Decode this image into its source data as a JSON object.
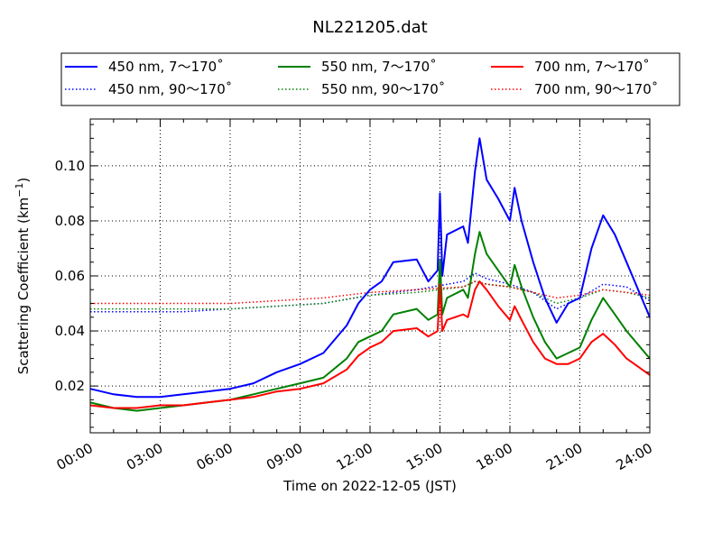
{
  "chart_data": {
    "type": "line",
    "title": "NL221205.dat",
    "xlabel": "Time on 2022-12-05 (JST)",
    "ylabel": "Scattering Coefficient (km",
    "ylabel_sup": "−1",
    "ylabel_end": ")",
    "xlim": [
      0,
      24
    ],
    "ylim": [
      0.003,
      0.117
    ],
    "x_ticks": [
      0,
      3,
      6,
      9,
      12,
      15,
      18,
      21,
      24
    ],
    "x_tick_labels": [
      "00:00",
      "03:00",
      "06:00",
      "09:00",
      "12:00",
      "15:00",
      "18:00",
      "21:00",
      "24:00"
    ],
    "y_ticks": [
      0.02,
      0.04,
      0.06,
      0.08,
      0.1
    ],
    "y_tick_labels": [
      "0.02",
      "0.04",
      "0.06",
      "0.08",
      "0.10"
    ],
    "grid": true,
    "legend_position": "top, above plot",
    "series": [
      {
        "name": "450 nm, 7～170˚",
        "color": "#0000ff",
        "style": "solid",
        "x": [
          0,
          1,
          2,
          3,
          4,
          5,
          6,
          7,
          8,
          9,
          10,
          11,
          11.5,
          12,
          12.5,
          13,
          14,
          14.5,
          14.9,
          15,
          15.1,
          15.3,
          16,
          16.2,
          16.5,
          16.7,
          17,
          17.5,
          18,
          18.2,
          18.5,
          19,
          19.5,
          20,
          20.5,
          21,
          21.5,
          22,
          22.5,
          23,
          23.5,
          24
        ],
        "values": [
          0.019,
          0.017,
          0.016,
          0.016,
          0.017,
          0.018,
          0.019,
          0.021,
          0.025,
          0.028,
          0.032,
          0.042,
          0.05,
          0.055,
          0.058,
          0.065,
          0.066,
          0.058,
          0.062,
          0.09,
          0.06,
          0.075,
          0.078,
          0.072,
          0.098,
          0.11,
          0.095,
          0.088,
          0.08,
          0.092,
          0.08,
          0.065,
          0.052,
          0.043,
          0.05,
          0.052,
          0.07,
          0.082,
          0.075,
          0.065,
          0.055,
          0.045
        ]
      },
      {
        "name": "550 nm, 7～170˚",
        "color": "#008000",
        "style": "solid",
        "x": [
          0,
          1,
          2,
          3,
          4,
          5,
          6,
          7,
          8,
          9,
          10,
          11,
          11.5,
          12,
          12.5,
          13,
          14,
          14.5,
          14.9,
          15,
          15.1,
          15.3,
          16,
          16.2,
          16.5,
          16.7,
          17,
          17.5,
          18,
          18.2,
          18.5,
          19,
          19.5,
          20,
          20.5,
          21,
          21.5,
          22,
          22.5,
          23,
          23.5,
          24
        ],
        "values": [
          0.014,
          0.012,
          0.011,
          0.012,
          0.013,
          0.014,
          0.015,
          0.017,
          0.019,
          0.021,
          0.023,
          0.03,
          0.036,
          0.038,
          0.04,
          0.046,
          0.048,
          0.044,
          0.046,
          0.066,
          0.046,
          0.052,
          0.055,
          0.052,
          0.068,
          0.076,
          0.068,
          0.062,
          0.056,
          0.064,
          0.056,
          0.045,
          0.036,
          0.03,
          0.032,
          0.034,
          0.044,
          0.052,
          0.046,
          0.04,
          0.035,
          0.03
        ]
      },
      {
        "name": "700 nm, 7～170˚",
        "color": "#ff0000",
        "style": "solid",
        "x": [
          0,
          1,
          2,
          3,
          4,
          5,
          6,
          7,
          8,
          9,
          10,
          11,
          11.5,
          12,
          12.5,
          13,
          14,
          14.5,
          14.9,
          15,
          15.1,
          15.3,
          16,
          16.2,
          16.5,
          16.7,
          17,
          17.5,
          18,
          18.2,
          18.5,
          19,
          19.5,
          20,
          20.5,
          21,
          21.5,
          22,
          22.5,
          23,
          23.5,
          24
        ],
        "values": [
          0.013,
          0.012,
          0.012,
          0.013,
          0.013,
          0.014,
          0.015,
          0.016,
          0.018,
          0.019,
          0.021,
          0.026,
          0.031,
          0.034,
          0.036,
          0.04,
          0.041,
          0.038,
          0.04,
          0.057,
          0.04,
          0.044,
          0.046,
          0.045,
          0.055,
          0.058,
          0.055,
          0.049,
          0.044,
          0.049,
          0.044,
          0.036,
          0.03,
          0.028,
          0.028,
          0.03,
          0.036,
          0.039,
          0.035,
          0.03,
          0.027,
          0.024
        ]
      },
      {
        "name": "450 nm, 90～170˚",
        "color": "#0000ff",
        "style": "dotted",
        "x": [
          0,
          2,
          4,
          6,
          8,
          10,
          12,
          14,
          16,
          16.5,
          17,
          18,
          19,
          20,
          21,
          22,
          23,
          24
        ],
        "values": [
          0.047,
          0.047,
          0.047,
          0.048,
          0.049,
          0.05,
          0.053,
          0.055,
          0.058,
          0.061,
          0.059,
          0.057,
          0.054,
          0.048,
          0.052,
          0.057,
          0.056,
          0.051
        ]
      },
      {
        "name": "550 nm, 90～170˚",
        "color": "#008000",
        "style": "dotted",
        "x": [
          0,
          2,
          4,
          6,
          8,
          10,
          12,
          14,
          16,
          16.5,
          17,
          18,
          19,
          20,
          21,
          22,
          23,
          24
        ],
        "values": [
          0.048,
          0.048,
          0.048,
          0.048,
          0.049,
          0.05,
          0.053,
          0.054,
          0.056,
          0.058,
          0.057,
          0.056,
          0.054,
          0.05,
          0.052,
          0.055,
          0.054,
          0.052
        ]
      },
      {
        "name": "700 nm, 90～170˚",
        "color": "#ff0000",
        "style": "dotted",
        "x": [
          0,
          2,
          4,
          6,
          8,
          10,
          12,
          14,
          16,
          16.5,
          17,
          18,
          19,
          20,
          21,
          22,
          23,
          24
        ],
        "values": [
          0.05,
          0.05,
          0.05,
          0.05,
          0.051,
          0.052,
          0.054,
          0.055,
          0.056,
          0.058,
          0.057,
          0.056,
          0.054,
          0.052,
          0.053,
          0.055,
          0.054,
          0.053
        ]
      }
    ]
  }
}
